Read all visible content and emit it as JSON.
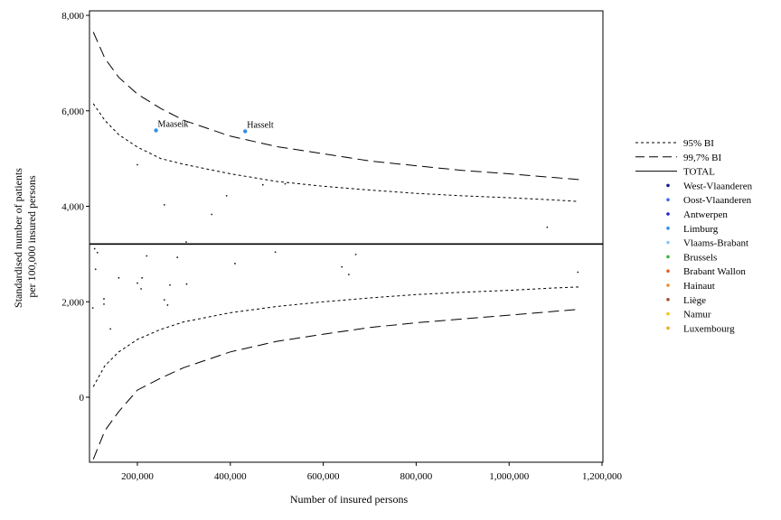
{
  "chart_data": {
    "type": "scatter",
    "title": "",
    "xlabel": "Number of insured persons",
    "ylabel_lines": [
      "Standardised number of patients",
      "per 100,000 insured persons"
    ],
    "xlim": [
      100000,
      1200000
    ],
    "ylim": [
      -1350,
      8000
    ],
    "xticks": [
      200000,
      400000,
      600000,
      800000,
      1000000,
      1200000
    ],
    "xtick_labels": [
      "200,000",
      "400,000",
      "600,000",
      "800,000",
      "1,000,000",
      "1,200,000"
    ],
    "yticks": [
      0,
      2000,
      4000,
      6000,
      8000
    ],
    "ytick_labels": [
      "0",
      "2,000",
      "4,000",
      "6,000",
      "8,000"
    ],
    "grid": false,
    "legend_position": "right",
    "total": 3210,
    "legend": [
      {
        "label": "95% BI",
        "kind": "line",
        "dash": "short"
      },
      {
        "label": "99,7% BI",
        "kind": "line",
        "dash": "long"
      },
      {
        "label": "TOTAL",
        "kind": "line",
        "dash": "solid"
      },
      {
        "label": "West-Vlaanderen",
        "kind": "dot",
        "color": "#1a1a8c"
      },
      {
        "label": "Oost-Vlaanderen",
        "kind": "dot",
        "color": "#3a6ee8"
      },
      {
        "label": "Antwerpen",
        "kind": "dot",
        "color": "#1f22d6"
      },
      {
        "label": "Limburg",
        "kind": "dot",
        "color": "#2f8ee8"
      },
      {
        "label": "Vlaams-Brabant",
        "kind": "dot",
        "color": "#8ec8f2"
      },
      {
        "label": "Brussels",
        "kind": "dot",
        "color": "#3cb53c"
      },
      {
        "label": "Brabant Wallon",
        "kind": "dot",
        "color": "#e0602a"
      },
      {
        "label": "Hainaut",
        "kind": "dot",
        "color": "#f08a2c"
      },
      {
        "label": "Liège",
        "kind": "dot",
        "color": "#a0522d"
      },
      {
        "label": "Namur",
        "kind": "dot",
        "color": "#f5c518"
      },
      {
        "label": "Luxembourg",
        "kind": "dot",
        "color": "#f5a623"
      }
    ],
    "labeled_points": [
      {
        "x": 240000,
        "y": 5590,
        "label": "Maaseik",
        "color": "#2f8ee8"
      },
      {
        "x": 432000,
        "y": 5570,
        "label": "Hasselt",
        "color": "#2f8ee8"
      }
    ],
    "points": [
      {
        "x": 200000,
        "y": 4870
      },
      {
        "x": 258000,
        "y": 4030
      },
      {
        "x": 360000,
        "y": 3830
      },
      {
        "x": 392000,
        "y": 4220
      },
      {
        "x": 470000,
        "y": 4450
      },
      {
        "x": 518000,
        "y": 4470
      },
      {
        "x": 1082000,
        "y": 3560
      },
      {
        "x": 108000,
        "y": 3110
      },
      {
        "x": 114000,
        "y": 3030
      },
      {
        "x": 110000,
        "y": 2680
      },
      {
        "x": 220000,
        "y": 2960
      },
      {
        "x": 305000,
        "y": 3250
      },
      {
        "x": 286000,
        "y": 2930
      },
      {
        "x": 497000,
        "y": 3040
      },
      {
        "x": 670000,
        "y": 2990
      },
      {
        "x": 410000,
        "y": 2800
      },
      {
        "x": 640000,
        "y": 2730
      },
      {
        "x": 655000,
        "y": 2570
      },
      {
        "x": 1148000,
        "y": 2620
      },
      {
        "x": 160000,
        "y": 2500
      },
      {
        "x": 210000,
        "y": 2500
      },
      {
        "x": 200000,
        "y": 2390
      },
      {
        "x": 208000,
        "y": 2270
      },
      {
        "x": 306000,
        "y": 2370
      },
      {
        "x": 270000,
        "y": 2350
      },
      {
        "x": 128000,
        "y": 2060
      },
      {
        "x": 128000,
        "y": 1950
      },
      {
        "x": 258000,
        "y": 2040
      },
      {
        "x": 265000,
        "y": 1930
      },
      {
        "x": 104000,
        "y": 1870
      },
      {
        "x": 142000,
        "y": 1430
      }
    ],
    "ci_95_upper": {
      "x": [
        105000,
        130000,
        160000,
        200000,
        250000,
        300000,
        400000,
        500000,
        600000,
        700000,
        800000,
        900000,
        1000000,
        1100000,
        1150000
      ],
      "y": [
        6150,
        5800,
        5500,
        5240,
        5000,
        4880,
        4680,
        4520,
        4420,
        4340,
        4270,
        4220,
        4180,
        4130,
        4100
      ]
    },
    "ci_95_lower": {
      "x": [
        105000,
        130000,
        160000,
        200000,
        250000,
        300000,
        400000,
        500000,
        600000,
        700000,
        800000,
        900000,
        1000000,
        1100000,
        1150000
      ],
      "y": [
        220,
        660,
        950,
        1210,
        1420,
        1580,
        1770,
        1900,
        2000,
        2080,
        2150,
        2200,
        2240,
        2290,
        2310
      ]
    },
    "ci_997_upper": {
      "x": [
        105000,
        130000,
        160000,
        200000,
        250000,
        300000,
        400000,
        500000,
        600000,
        700000,
        800000,
        900000,
        1000000,
        1100000,
        1150000
      ],
      "y": [
        7650,
        7100,
        6700,
        6350,
        6050,
        5800,
        5470,
        5250,
        5100,
        4950,
        4850,
        4750,
        4680,
        4600,
        4560
      ]
    },
    "ci_997_lower": {
      "x": [
        105000,
        130000,
        160000,
        200000,
        250000,
        300000,
        400000,
        500000,
        600000,
        700000,
        800000,
        900000,
        1000000,
        1100000,
        1150000
      ],
      "y": [
        -1300,
        -700,
        -300,
        150,
        400,
        620,
        950,
        1170,
        1320,
        1460,
        1560,
        1640,
        1720,
        1800,
        1840
      ]
    }
  }
}
